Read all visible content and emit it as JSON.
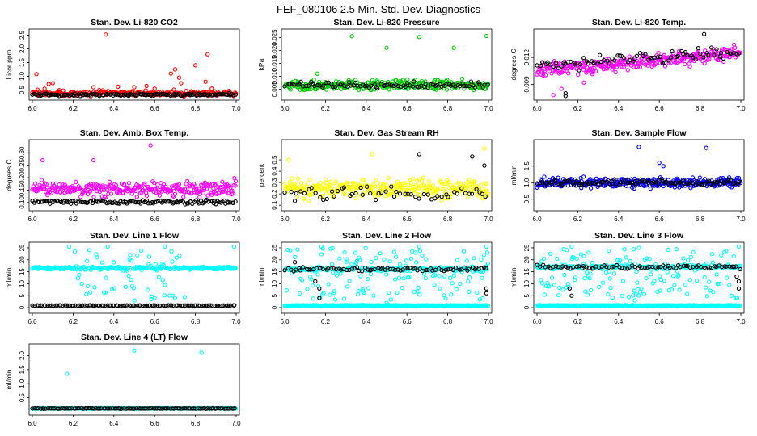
{
  "figure": {
    "title": "FEF_080106  2.5 Min. Std. Dev. Diagnostics",
    "colors": {
      "red": "#ff0000",
      "green": "#00cc00",
      "magenta": "#ff00ff",
      "yellow": "#ffff00",
      "blue": "#0000ff",
      "cyan": "#00ffff",
      "black": "#000000"
    }
  },
  "chart_data": [
    {
      "type": "scatter",
      "title": "Stan. Dev. Li-820 CO2",
      "ylabel": "Licor ppm",
      "xlim": [
        6.0,
        7.0
      ],
      "xticks": [
        "6.0",
        "6.2",
        "6.4",
        "6.6",
        "6.8",
        "7.0"
      ],
      "ylim": [
        0.25,
        2.6
      ],
      "yticks": [
        "0.5",
        "1.0",
        "1.5",
        "2.0",
        "2.5"
      ],
      "series": [
        {
          "name": "primary",
          "color": "#ff0000",
          "n": 240,
          "base": 0.38,
          "spread": 0.15,
          "outliers": [
            [
              6.02,
              1.08
            ],
            [
              6.06,
              0.55
            ],
            [
              6.08,
              0.72
            ],
            [
              6.1,
              0.75
            ],
            [
              6.13,
              0.45
            ],
            [
              6.36,
              2.52
            ],
            [
              6.3,
              0.6
            ],
            [
              6.42,
              0.62
            ],
            [
              6.5,
              0.6
            ],
            [
              6.56,
              0.65
            ],
            [
              6.6,
              0.55
            ],
            [
              6.68,
              1.1
            ],
            [
              6.7,
              1.25
            ],
            [
              6.72,
              0.95
            ],
            [
              6.73,
              0.75
            ],
            [
              6.8,
              1.4
            ],
            [
              6.85,
              0.8
            ],
            [
              6.86,
              1.8
            ],
            [
              6.88,
              0.55
            ]
          ]
        },
        {
          "name": "secondary",
          "color": "#000000",
          "n": 130,
          "base": 0.33,
          "spread": 0.06,
          "outliers": []
        }
      ]
    },
    {
      "type": "scatter",
      "title": "Stan. Dev. Li-820 Pressure",
      "ylabel": "kPa",
      "xlim": [
        6.0,
        7.0
      ],
      "xticks": [
        "6.0",
        "6.2",
        "6.4",
        "6.6",
        "6.8",
        "7.0"
      ],
      "ylim": [
        0.002,
        0.027
      ],
      "yticks": [
        "0.005",
        "0.010",
        "0.015",
        "0.020",
        "0.025"
      ],
      "series": [
        {
          "name": "primary",
          "color": "#00cc00",
          "n": 300,
          "base": 0.0065,
          "spread": 0.0028,
          "outliers": [
            [
              6.16,
              0.011
            ],
            [
              6.33,
              0.0255
            ],
            [
              6.5,
              0.021
            ],
            [
              6.66,
              0.0252
            ],
            [
              6.83,
              0.021
            ],
            [
              6.99,
              0.0256
            ]
          ]
        },
        {
          "name": "secondary",
          "color": "#000000",
          "n": 90,
          "base": 0.0066,
          "spread": 0.0018,
          "outliers": []
        }
      ]
    },
    {
      "type": "scatter",
      "title": "Stan. Dev. Li-820 Temp.",
      "ylabel": "degrees C",
      "xlim": [
        6.0,
        7.0
      ],
      "xticks": [
        "6.0",
        "6.2",
        "6.4",
        "6.6",
        "6.8",
        "7.0"
      ],
      "ylim": [
        0.0076,
        0.0148
      ],
      "yticks": [
        "0.009",
        "0.012"
      ],
      "series": [
        {
          "name": "primary",
          "color": "#ff00ff",
          "n": 300,
          "base": 0.0115,
          "spread": 0.0012,
          "trend": 0.0018,
          "outliers": [
            [
              6.08,
              0.0078
            ],
            [
              6.12,
              0.0085
            ],
            [
              6.02,
              0.0101
            ],
            [
              6.23,
              0.0092
            ]
          ]
        },
        {
          "name": "secondary",
          "color": "#000000",
          "n": 80,
          "base": 0.0118,
          "spread": 0.001,
          "trend": 0.0015,
          "outliers": [
            [
              6.14,
              0.0077
            ],
            [
              6.14,
              0.008
            ],
            [
              6.82,
              0.0146
            ]
          ]
        }
      ]
    },
    {
      "type": "scatter",
      "title": "Stan. Dev. Amb. Box Temp.",
      "ylabel": "degrees C",
      "xlim": [
        6.0,
        7.0
      ],
      "xticks": [
        "6.0",
        "6.2",
        "6.4",
        "6.6",
        "6.8",
        "7.0"
      ],
      "ylim": [
        0.08,
        0.34
      ],
      "yticks": [
        "0.10",
        "0.15",
        "0.20",
        "0.25",
        "0.30"
      ],
      "series": [
        {
          "name": "primary",
          "color": "#ff00ff",
          "n": 300,
          "base": 0.155,
          "spread": 0.045,
          "outliers": [
            [
              6.05,
              0.27
            ],
            [
              6.58,
              0.33
            ],
            [
              6.3,
              0.27
            ]
          ]
        },
        {
          "name": "secondary",
          "color": "#000000",
          "n": 130,
          "base": 0.102,
          "spread": 0.012,
          "outliers": []
        }
      ]
    },
    {
      "type": "scatter",
      "title": "Stan. Dev. Gas Stream RH",
      "ylabel": "percent",
      "xlim": [
        6.0,
        7.0
      ],
      "xticks": [
        "6.0",
        "6.2",
        "6.4",
        "6.6",
        "6.8",
        "7.0"
      ],
      "ylim": [
        0.08,
        0.65
      ],
      "yticks": [
        "0.1",
        "0.2",
        "0.3",
        "0.4",
        "0.5"
      ],
      "series": [
        {
          "name": "primary",
          "color": "#ffff00",
          "n": 320,
          "base": 0.25,
          "spread": 0.12,
          "outliers": [
            [
              6.02,
              0.5
            ],
            [
              6.43,
              0.55
            ],
            [
              6.98,
              0.6
            ]
          ]
        },
        {
          "name": "secondary",
          "color": "#000000",
          "n": 55,
          "base": 0.2,
          "spread": 0.1,
          "outliers": [
            [
              6.66,
              0.55
            ],
            [
              6.92,
              0.53
            ],
            [
              6.98,
              0.45
            ]
          ]
        }
      ]
    },
    {
      "type": "scatter",
      "title": "Stan. Dev. Sample Flow",
      "ylabel": "ml/min",
      "xlim": [
        6.0,
        7.0
      ],
      "xticks": [
        "6.0",
        "6.2",
        "6.4",
        "6.6",
        "6.8",
        "7.0"
      ],
      "ylim": [
        0.25,
        2.2
      ],
      "yticks": [
        "0.5",
        "1.0",
        "1.5"
      ],
      "series": [
        {
          "name": "primary",
          "color": "#0000ff",
          "n": 320,
          "base": 1.0,
          "spread": 0.22,
          "outliers": [
            [
              6.5,
              2.08
            ],
            [
              6.83,
              2.05
            ],
            [
              6.6,
              1.6
            ],
            [
              6.62,
              1.5
            ]
          ]
        },
        {
          "name": "secondary",
          "color": "#000000",
          "n": 100,
          "base": 1.0,
          "spread": 0.12,
          "outliers": []
        }
      ]
    },
    {
      "type": "scatter",
      "title": "Stan. Dev. Line 1 Flow",
      "ylabel": "ml/min",
      "xlim": [
        6.0,
        7.0
      ],
      "xticks": [
        "6.0",
        "6.2",
        "6.4",
        "6.6",
        "6.8",
        "7.0"
      ],
      "ylim": [
        -1,
        26
      ],
      "yticks": [
        "0",
        "5",
        "10",
        "15",
        "20",
        "25"
      ],
      "series": [
        {
          "name": "primary",
          "color": "#00ffff",
          "n": 280,
          "base": 16.5,
          "spread": 0.8,
          "scatter_window": [
            6.2,
            6.75
          ],
          "scatter_range": [
            3,
            24
          ],
          "outliers": [
            [
              6.18,
              25.5
            ],
            [
              6.28,
              24
            ],
            [
              6.37,
              25.5
            ],
            [
              6.48,
              22
            ],
            [
              6.65,
              25.5
            ],
            [
              6.99,
              25.5
            ],
            [
              6.6,
              4
            ],
            [
              6.7,
              4
            ]
          ]
        },
        {
          "name": "secondary",
          "color": "#000000",
          "n": 110,
          "base": 0.9,
          "spread": 0.15,
          "outliers": []
        }
      ]
    },
    {
      "type": "scatter",
      "title": "Stan. Dev. Line 2 Flow",
      "ylabel": "ml/min",
      "xlim": [
        6.0,
        7.0
      ],
      "xticks": [
        "6.0",
        "6.2",
        "6.4",
        "6.6",
        "6.8",
        "7.0"
      ],
      "ylim": [
        -1,
        26
      ],
      "yticks": [
        "0",
        "5",
        "10",
        "15",
        "20",
        "25"
      ],
      "series": [
        {
          "name": "primary",
          "color": "#00ffff",
          "n": 300,
          "base": 16,
          "spread": 1.2,
          "scatter_window": [
            6.0,
            7.0
          ],
          "scatter_range": [
            3,
            25
          ],
          "outliers": [
            [
              6.18,
              25.5
            ],
            [
              6.66,
              25.5
            ],
            [
              6.99,
              25.5
            ],
            [
              6.5,
              2
            ]
          ]
        },
        {
          "name": "tertiary",
          "color": "#00ffff",
          "n": 260,
          "base": 0.9,
          "spread": 0.25,
          "outliers": []
        },
        {
          "name": "secondary",
          "color": "#000000",
          "n": 80,
          "base": 16,
          "spread": 1.2,
          "outliers": [
            [
              6.05,
              19
            ],
            [
              6.15,
              11
            ],
            [
              6.17,
              4
            ],
            [
              6.17,
              8
            ],
            [
              6.99,
              8
            ],
            [
              6.99,
              6
            ]
          ]
        }
      ]
    },
    {
      "type": "scatter",
      "title": "Stan. Dev. Line 3 Flow",
      "ylabel": "ml/min",
      "xlim": [
        6.0,
        7.0
      ],
      "xticks": [
        "6.0",
        "6.2",
        "6.4",
        "6.6",
        "6.8",
        "7.0"
      ],
      "ylim": [
        -1,
        26
      ],
      "yticks": [
        "0",
        "5",
        "10",
        "15",
        "20",
        "25"
      ],
      "series": [
        {
          "name": "primary",
          "color": "#00ffff",
          "n": 300,
          "base": 17,
          "spread": 1.2,
          "scatter_window": [
            6.0,
            7.0
          ],
          "scatter_range": [
            4,
            25
          ],
          "outliers": [
            [
              6.17,
              25.5
            ],
            [
              6.5,
              25
            ],
            [
              6.99,
              25.5
            ],
            [
              6.48,
              3
            ]
          ]
        },
        {
          "name": "tertiary",
          "color": "#00ffff",
          "n": 260,
          "base": 0.9,
          "spread": 0.25,
          "outliers": []
        },
        {
          "name": "secondary",
          "color": "#000000",
          "n": 80,
          "base": 17,
          "spread": 1.2,
          "outliers": [
            [
              6.17,
              5
            ],
            [
              6.16,
              8
            ],
            [
              6.99,
              11
            ],
            [
              6.99,
              8
            ],
            [
              6.98,
              13
            ]
          ]
        }
      ]
    },
    {
      "type": "scatter",
      "title": "Stan. Dev. Line 4 (LT) Flow",
      "ylabel": "ml/min",
      "xlim": [
        6.0,
        7.0
      ],
      "xticks": [
        "6.0",
        "6.2",
        "6.4",
        "6.6",
        "6.8",
        "7.0"
      ],
      "ylim": [
        0.0,
        2.3
      ],
      "yticks": [
        "0.5",
        "1.0",
        "1.5",
        "2.0"
      ],
      "series": [
        {
          "name": "primary",
          "color": "#00ffff",
          "n": 260,
          "base": 0.12,
          "spread": 0.02,
          "outliers": [
            [
              6.17,
              1.35
            ],
            [
              6.5,
              2.18
            ],
            [
              6.83,
              2.1
            ]
          ]
        },
        {
          "name": "secondary",
          "color": "#000000",
          "n": 110,
          "base": 0.12,
          "spread": 0.015,
          "outliers": []
        }
      ]
    }
  ]
}
